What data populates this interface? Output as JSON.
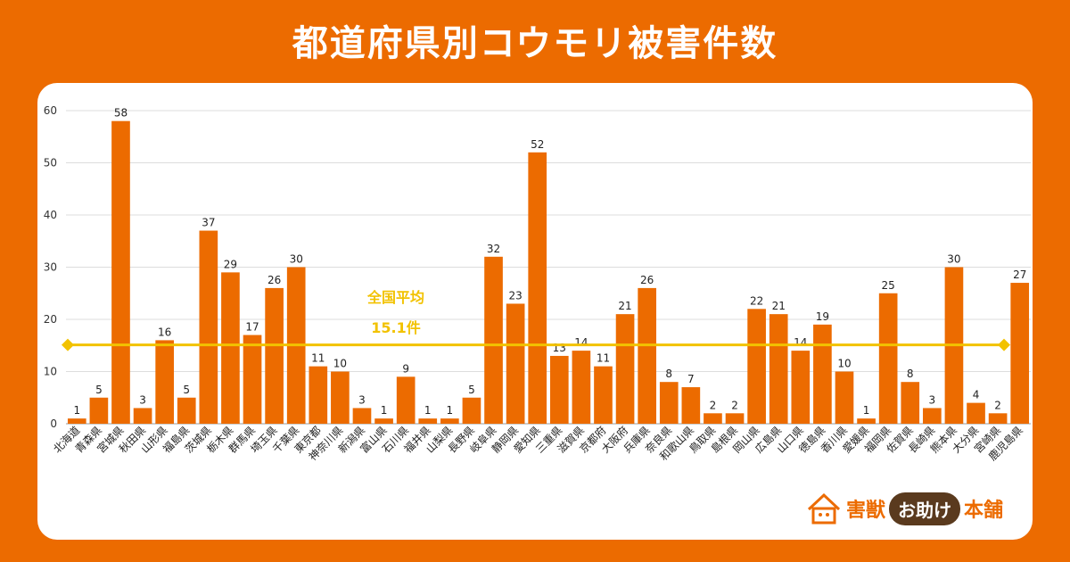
{
  "title": "都道府県別コウモリ被害件数",
  "colors": {
    "background": "#EC6B00",
    "bar": "#EC6B00",
    "average_line": "#F2C200",
    "panel": "#FFFFFF"
  },
  "logo": {
    "part1": "害獣",
    "part2": "お助け",
    "part3": "本舗",
    "icon": "house-icon"
  },
  "chart_data": {
    "type": "bar",
    "categories": [
      "北海道",
      "青森県",
      "宮城県",
      "秋田県",
      "山形県",
      "福島県",
      "茨城県",
      "栃木県",
      "群馬県",
      "埼玉県",
      "千葉県",
      "東京都",
      "神奈川県",
      "新潟県",
      "富山県",
      "石川県",
      "福井県",
      "山梨県",
      "長野県",
      "岐阜県",
      "静岡県",
      "愛知県",
      "三重県",
      "滋賀県",
      "京都府",
      "大阪府",
      "兵庫県",
      "奈良県",
      "和歌山県",
      "鳥取県",
      "島根県",
      "岡山県",
      "広島県",
      "山口県",
      "徳島県",
      "香川県",
      "愛媛県",
      "福岡県",
      "佐賀県",
      "長崎県",
      "熊本県",
      "大分県",
      "宮崎県",
      "鹿児島県"
    ],
    "values": [
      1,
      5,
      58,
      3,
      16,
      5,
      37,
      29,
      17,
      26,
      30,
      11,
      10,
      3,
      1,
      9,
      1,
      1,
      5,
      32,
      23,
      52,
      13,
      14,
      11,
      21,
      26,
      8,
      7,
      2,
      2,
      22,
      21,
      14,
      19,
      10,
      1,
      25,
      8,
      3,
      30,
      4,
      2,
      27
    ],
    "yticks": [
      "0",
      "10",
      "20",
      "30",
      "40",
      "50",
      "60"
    ],
    "ylim": [
      0,
      60
    ],
    "grid": true,
    "average": {
      "value": 15.1,
      "label_line1": "全国平均",
      "label_line2": "15.1件"
    }
  }
}
